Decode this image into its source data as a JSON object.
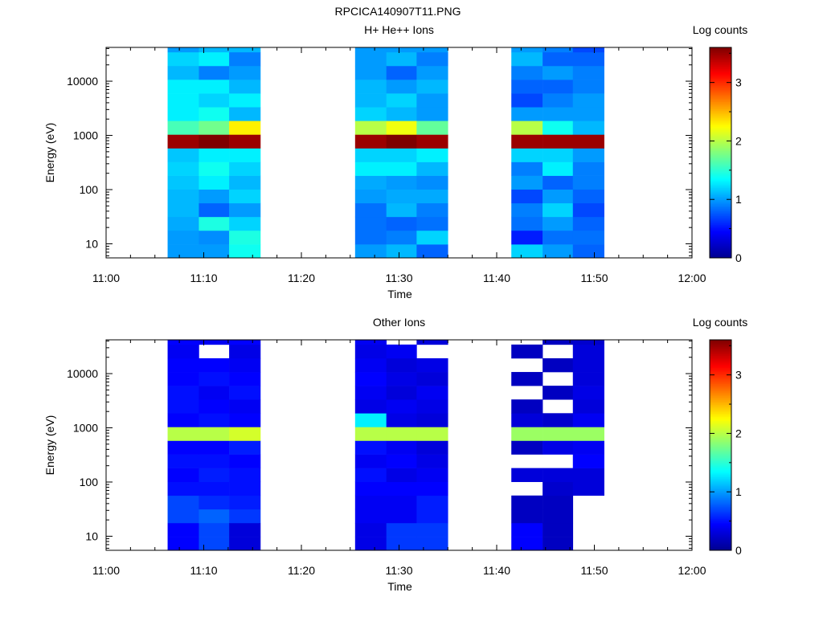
{
  "figure_title": "RPCICA140907T11.PNG",
  "colormap": [
    "#00008f",
    "#0000ff",
    "#007fff",
    "#00ffff",
    "#7fff7f",
    "#ffff00",
    "#ff7f00",
    "#ff0000",
    "#7f0000"
  ],
  "chart_data": [
    {
      "type": "heatmap",
      "title": "H+ He++ Ions",
      "xlabel": "Time",
      "ylabel": "Energy (eV)",
      "colorbar_label": "Log counts",
      "x_ticks": [
        "11:00",
        "11:10",
        "11:20",
        "11:30",
        "11:40",
        "11:50",
        "12:00"
      ],
      "xlim_minutes": [
        0,
        60
      ],
      "y_scale": "log",
      "ylim": [
        5.5,
        42000
      ],
      "y_ticks": [
        "10",
        "100",
        "1000",
        "10000"
      ],
      "colorbar_range": [
        0,
        3.6
      ],
      "colorbar_ticks": [
        "0",
        "1",
        "2",
        "3"
      ],
      "energy_bins_eV": [
        5.5,
        9.8,
        17.6,
        31.5,
        56.4,
        101,
        181,
        324,
        580,
        1039,
        1862,
        3336,
        5977,
        10710,
        19190,
        34380,
        42000
      ],
      "time_columns": [
        {
          "start": "11:06.3",
          "end": "11:09.5",
          "log_counts": [
            1.0,
            1.0,
            1.05,
            1.1,
            1.1,
            1.15,
            1.2,
            1.15,
            3.5,
            1.6,
            1.3,
            1.3,
            1.3,
            1.1,
            1.2,
            1.0
          ]
        },
        {
          "start": "11:09.5",
          "end": "11:12.6",
          "log_counts": [
            1.0,
            0.95,
            1.45,
            0.8,
            1.0,
            1.3,
            1.4,
            1.3,
            3.6,
            1.75,
            1.4,
            1.2,
            1.3,
            0.9,
            1.3,
            1.1
          ]
        },
        {
          "start": "11:12.6",
          "end": "11:15.8",
          "log_counts": [
            1.4,
            1.45,
            1.2,
            1.0,
            1.2,
            1.1,
            1.2,
            1.3,
            3.5,
            2.3,
            1.1,
            1.3,
            1.1,
            1.0,
            0.9,
            1.1
          ]
        },
        {
          "start": "11:25.5",
          "end": "11:28.7",
          "log_counts": [
            1.0,
            0.85,
            0.85,
            0.85,
            1.0,
            1.05,
            1.3,
            1.2,
            3.5,
            2.0,
            1.2,
            1.1,
            1.1,
            1.0,
            1.0,
            1.0
          ]
        },
        {
          "start": "11:28.7",
          "end": "11:31.8",
          "log_counts": [
            1.1,
            0.9,
            0.8,
            1.1,
            1.05,
            1.0,
            1.3,
            1.2,
            3.6,
            2.2,
            1.1,
            1.2,
            1.0,
            0.8,
            1.1,
            1.0
          ]
        },
        {
          "start": "11:31.8",
          "end": "11:35.0",
          "log_counts": [
            0.8,
            1.2,
            0.85,
            0.9,
            1.05,
            0.95,
            1.1,
            1.3,
            3.5,
            1.7,
            1.0,
            1.0,
            1.1,
            1.0,
            0.9,
            1.0
          ]
        },
        {
          "start": "11:41.5",
          "end": "11:44.7",
          "log_counts": [
            1.2,
            0.55,
            0.85,
            0.9,
            0.7,
            1.0,
            0.9,
            1.2,
            3.5,
            2.0,
            1.0,
            0.7,
            0.8,
            0.9,
            1.1,
            1.0
          ]
        },
        {
          "start": "11:44.7",
          "end": "11:47.8",
          "log_counts": [
            1.0,
            0.85,
            1.0,
            1.2,
            1.0,
            0.8,
            1.3,
            1.2,
            3.5,
            1.4,
            1.0,
            0.9,
            0.8,
            1.0,
            0.8,
            0.9
          ]
        },
        {
          "start": "11:47.8",
          "end": "11:51.0",
          "log_counts": [
            0.8,
            0.85,
            0.8,
            0.7,
            0.8,
            0.9,
            0.9,
            1.0,
            3.5,
            1.1,
            1.0,
            1.0,
            0.9,
            0.9,
            0.8,
            0.7
          ]
        }
      ]
    },
    {
      "type": "heatmap",
      "title": "Other Ions",
      "xlabel": "Time",
      "ylabel": "Energy (eV)",
      "colorbar_label": "Log counts",
      "x_ticks": [
        "11:00",
        "11:10",
        "11:20",
        "11:30",
        "11:40",
        "11:50",
        "12:00"
      ],
      "xlim_minutes": [
        0,
        60
      ],
      "y_scale": "log",
      "ylim": [
        5.5,
        42000
      ],
      "y_ticks": [
        "10",
        "100",
        "1000",
        "10000"
      ],
      "colorbar_range": [
        0,
        3.6
      ],
      "colorbar_ticks": [
        "0",
        "1",
        "2",
        "3"
      ],
      "energy_bins_eV": [
        5.5,
        9.8,
        17.6,
        31.5,
        56.4,
        101,
        181,
        324,
        580,
        1039,
        1862,
        3336,
        5977,
        10710,
        19190,
        34380,
        42000
      ],
      "time_columns": [
        {
          "start": "11:06.3",
          "end": "11:09.5",
          "log_counts": [
            0.45,
            0.45,
            0.7,
            0.7,
            0.5,
            0.45,
            0.5,
            0.45,
            2.0,
            0.45,
            0.5,
            0.5,
            0.45,
            0.45,
            0.4,
            0.45
          ]
        },
        {
          "start": "11:09.5",
          "end": "11:12.6",
          "log_counts": [
            0.7,
            0.7,
            0.8,
            0.6,
            0.5,
            0.55,
            0.5,
            0.45,
            2.0,
            0.5,
            0.45,
            0.4,
            0.5,
            0.45,
            null,
            0.4
          ]
        },
        {
          "start": "11:12.6",
          "end": "11:15.8",
          "log_counts": [
            0.3,
            0.3,
            0.65,
            0.55,
            0.5,
            0.5,
            0.45,
            0.55,
            2.1,
            0.45,
            0.4,
            0.5,
            0.45,
            0.4,
            0.35,
            0.45
          ]
        },
        {
          "start": "11:25.5",
          "end": "11:28.7",
          "log_counts": [
            0.35,
            0.35,
            0.4,
            0.4,
            0.45,
            0.5,
            0.4,
            0.5,
            2.0,
            1.3,
            0.35,
            0.4,
            0.45,
            0.4,
            0.35,
            0.4
          ]
        },
        {
          "start": "11:28.7",
          "end": "11:31.8",
          "log_counts": [
            0.65,
            0.65,
            0.4,
            0.4,
            0.45,
            0.35,
            0.45,
            0.4,
            2.0,
            0.35,
            0.4,
            0.3,
            0.35,
            0.3,
            0.4,
            null
          ]
        },
        {
          "start": "11:31.8",
          "end": "11:35.0",
          "log_counts": [
            0.65,
            0.65,
            0.55,
            0.55,
            0.45,
            0.4,
            0.35,
            0.3,
            2.0,
            0.3,
            0.35,
            0.4,
            0.3,
            0.35,
            null,
            0.3
          ]
        },
        {
          "start": "11:41.5",
          "end": "11:44.7",
          "log_counts": [
            0.45,
            0.45,
            0.2,
            0.2,
            null,
            0.3,
            null,
            0.2,
            1.9,
            0.3,
            0.2,
            null,
            0.2,
            null,
            0.2,
            null
          ]
        },
        {
          "start": "11:44.7",
          "end": "11:47.8",
          "log_counts": [
            0.2,
            0.2,
            0.2,
            0.2,
            0.25,
            0.3,
            null,
            0.35,
            1.9,
            0.25,
            null,
            0.2,
            null,
            0.2,
            null,
            0.2
          ]
        },
        {
          "start": "11:47.8",
          "end": "11:51.0",
          "log_counts": [
            null,
            null,
            null,
            null,
            0.3,
            0.3,
            0.45,
            0.4,
            1.9,
            0.4,
            0.3,
            0.35,
            0.3,
            0.3,
            0.3,
            0.25
          ]
        }
      ]
    }
  ]
}
